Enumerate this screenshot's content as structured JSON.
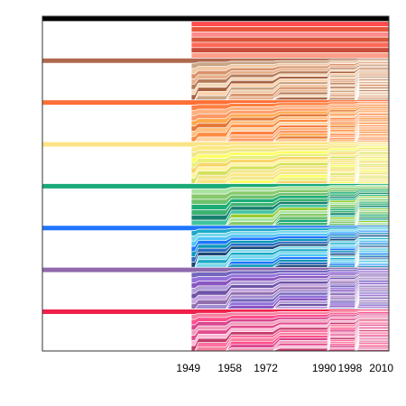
{
  "chart_data": {
    "type": "area",
    "x_ticks": [
      1949,
      1958,
      1972,
      1990,
      1998,
      2010
    ],
    "x_tick_labels": [
      "1949",
      "1958",
      "1972",
      "1990",
      "1998",
      "2010"
    ],
    "xlim": [
      1903,
      2010
    ],
    "ylim": [
      0,
      1
    ],
    "grid": false,
    "legend": "none",
    "frame_color": "#333333",
    "original_families": [
      "#000000",
      "#b0694f",
      "#ff6f35",
      "#fbe486",
      "#1aaa78",
      "#1f75fe",
      "#8f68ad",
      "#f0204b"
    ],
    "family_palettes": [
      [
        "#ff4b4b",
        "#e8553c",
        "#ff8a8a",
        "#d9543a",
        "#ff6a5a",
        "#c94a3a",
        "#ff9e8a",
        "#e86a50"
      ],
      [
        "#c9a585",
        "#f1c9a5",
        "#d8926a",
        "#e7b08a",
        "#b57c5a",
        "#f4d7b8",
        "#a66342",
        "#ffd1a8"
      ],
      [
        "#ff7f3f",
        "#ffb07c",
        "#ff9966",
        "#ffa94d",
        "#e67a3a",
        "#ffc07f",
        "#ff8c42",
        "#ffd3a0"
      ],
      [
        "#fce883",
        "#f1e788",
        "#ffff66",
        "#e8f07a",
        "#f8d568",
        "#fff3a0",
        "#d4e157",
        "#f0e68c"
      ],
      [
        "#a8e4a0",
        "#87c96b",
        "#6dc26d",
        "#1cac78",
        "#3cb371",
        "#17806d",
        "#40c4a0",
        "#9acd32"
      ],
      [
        "#1ca9c9",
        "#76d7ea",
        "#4fc3f7",
        "#1f75fe",
        "#0d98ba",
        "#2b6cc4",
        "#1a4876",
        "#80daeb"
      ],
      [
        "#7366bd",
        "#9370db",
        "#8a56c0",
        "#b19cd9",
        "#6f53a6",
        "#c5a3e0",
        "#926eae",
        "#a58bd1"
      ],
      [
        "#f780a1",
        "#ff4f8b",
        "#d9468f",
        "#f19cbb",
        "#e34c8e",
        "#ffb7d5",
        "#c43b6b",
        "#ff6fa0"
      ]
    ],
    "counts": [
      [
        8,
        8,
        8,
        8,
        8,
        8,
        8,
        8
      ],
      [
        8,
        10,
        9,
        10,
        8,
        11,
        9,
        10
      ],
      [
        8,
        13,
        12,
        12,
        11,
        14,
        12,
        13
      ],
      [
        8,
        16,
        15,
        14,
        14,
        16,
        15,
        16
      ],
      [
        8,
        22,
        21,
        20,
        20,
        22,
        21,
        22
      ],
      [
        8,
        30,
        28,
        28,
        27,
        30,
        29,
        30
      ]
    ]
  }
}
